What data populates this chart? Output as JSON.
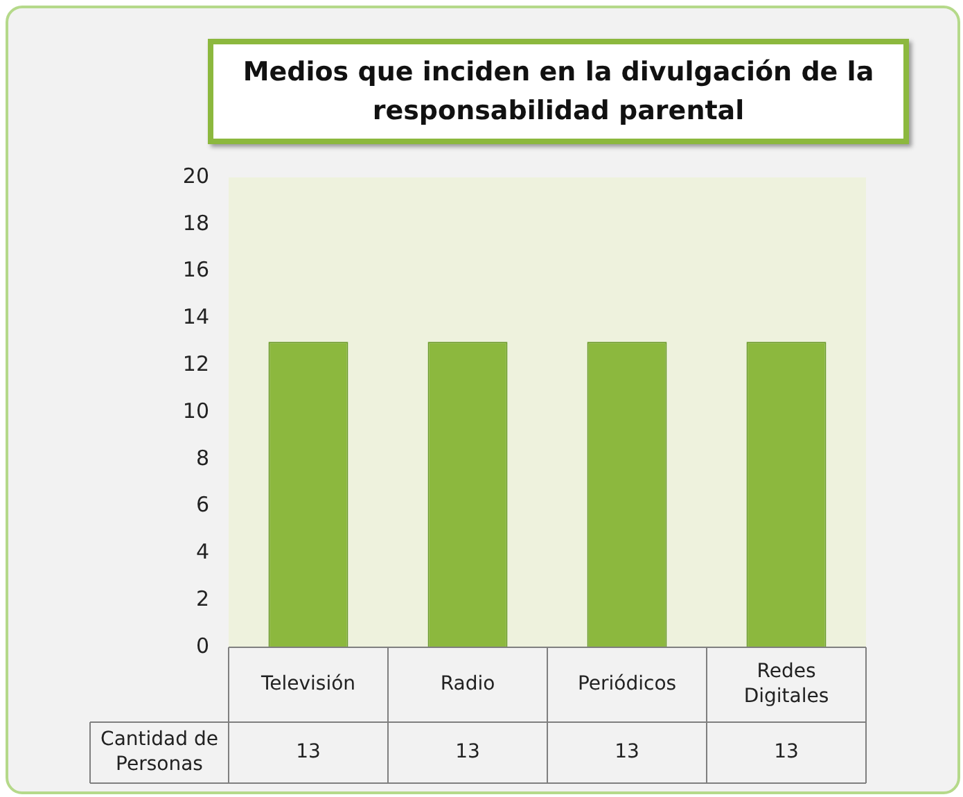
{
  "chart_data": {
    "type": "bar",
    "title": "Medios que inciden en la divulgación de la responsabilidad parental",
    "categories": [
      "Televisión",
      "Radio",
      "Periódicos",
      "Redes Digitales"
    ],
    "series": [
      {
        "name": "Cantidad de Personas",
        "color": "#8cb83e",
        "values": [
          13,
          13,
          13,
          13
        ]
      }
    ],
    "ylim": [
      0,
      20
    ],
    "yticks": [
      0,
      2,
      4,
      6,
      8,
      10,
      12,
      14,
      16,
      18,
      20
    ],
    "grid": false,
    "legend": false,
    "data_labels": true
  }
}
